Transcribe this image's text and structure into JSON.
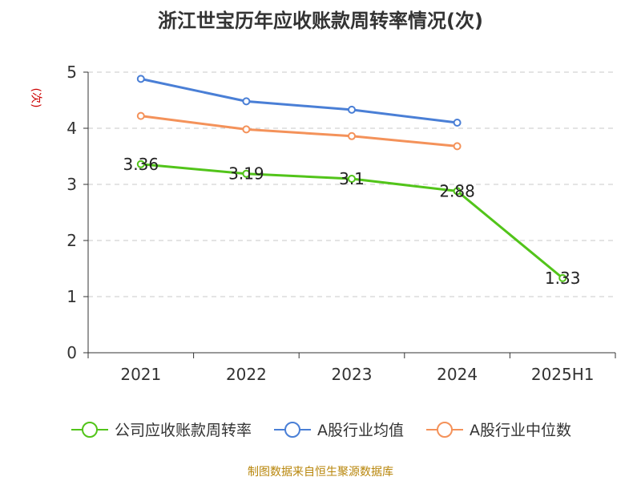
{
  "chart_data": {
    "type": "line",
    "title": "浙江世宝历年应收账款周转率情况(次)",
    "ylabel": "(次)",
    "xlabel": "",
    "categories": [
      "2021",
      "2022",
      "2023",
      "2024",
      "2025H1"
    ],
    "ylim": [
      0,
      5
    ],
    "yticks": [
      0,
      1,
      2,
      3,
      4,
      5
    ],
    "grid": true,
    "legend_position": "bottom",
    "series": [
      {
        "name": "公司应收账款周转率",
        "color": "#52c41a",
        "values": [
          3.36,
          3.19,
          3.1,
          2.88,
          1.33
        ],
        "labels": [
          "3.36",
          "3.19",
          "3.1",
          "2.88",
          "1.33"
        ]
      },
      {
        "name": "A股行业均值",
        "color": "#4a7fd6",
        "values": [
          4.88,
          4.48,
          4.33,
          4.1,
          null
        ]
      },
      {
        "name": "A股行业中位数",
        "color": "#f4925a",
        "values": [
          4.22,
          3.98,
          3.86,
          3.68,
          null
        ]
      }
    ]
  },
  "source": "制图数据来自恒生聚源数据库"
}
